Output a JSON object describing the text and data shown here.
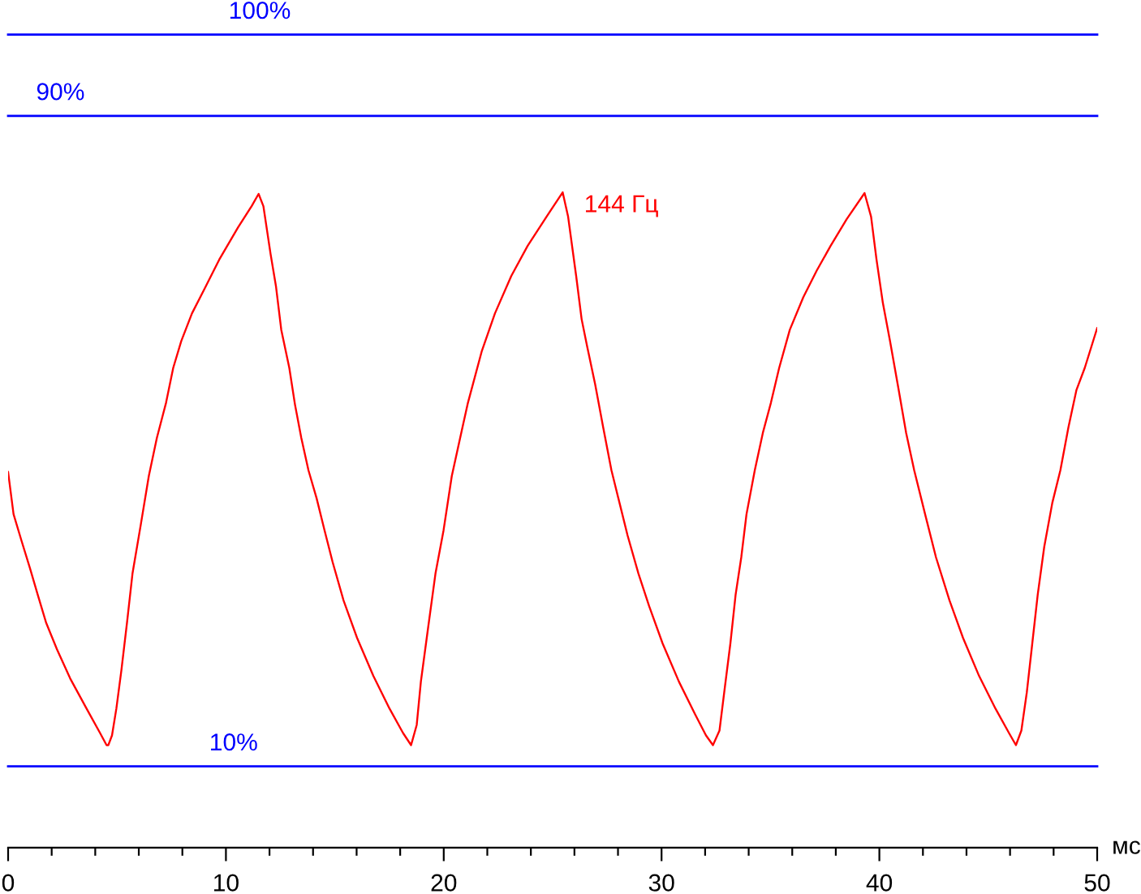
{
  "chart_data": {
    "type": "line",
    "xlabel": "мс",
    "x": [
      0,
      0.25,
      0.62,
      1.0,
      1.36,
      1.74,
      2.24,
      2.85,
      3.6,
      4.22,
      4.52,
      4.6,
      4.77,
      4.97,
      5.2,
      5.46,
      5.71,
      6.09,
      6.46,
      6.83,
      7.25,
      7.58,
      7.95,
      8.44,
      9.07,
      9.69,
      10.56,
      11.18,
      11.5,
      11.72,
      12.05,
      12.3,
      12.54,
      12.91,
      13.17,
      13.46,
      13.79,
      14.16,
      14.53,
      14.9,
      15.4,
      16.02,
      16.77,
      17.51,
      18.13,
      18.5,
      18.76,
      18.95,
      19.25,
      19.62,
      19.99,
      20.37,
      20.86,
      21.11,
      21.74,
      22.35,
      23.1,
      23.85,
      24.72,
      25.46,
      25.71,
      26.08,
      26.33,
      26.58,
      26.95,
      27.32,
      27.7,
      28.07,
      28.44,
      28.94,
      29.43,
      30.05,
      30.8,
      31.54,
      32.04,
      32.36,
      32.66,
      32.91,
      33.16,
      33.4,
      33.66,
      33.9,
      34.28,
      34.65,
      35.02,
      35.4,
      35.89,
      36.51,
      37.13,
      37.76,
      38.5,
      39.32,
      39.62,
      39.87,
      40.16,
      40.49,
      40.86,
      41.23,
      41.6,
      42.1,
      42.6,
      43.22,
      43.84,
      44.58,
      45.33,
      45.95,
      46.27,
      46.52,
      46.77,
      47.02,
      47.27,
      47.57,
      47.94,
      48.31,
      48.68,
      49.05,
      49.43,
      50
    ],
    "series": [
      {
        "name": "144 Гц",
        "color": "#ff0000",
        "values": [
          46.2,
          41.0,
          37.7,
          34.4,
          31.1,
          27.7,
          24.4,
          20.8,
          17.1,
          14.1,
          12.6,
          12.6,
          13.8,
          17.1,
          21.8,
          27.7,
          33.7,
          39.7,
          45.7,
          50.4,
          54.7,
          59.0,
          62.3,
          65.7,
          69.0,
          72.3,
          76.3,
          78.9,
          80.4,
          78.9,
          73.0,
          69.0,
          63.7,
          59.0,
          54.5,
          50.4,
          46.4,
          43.0,
          39.0,
          35.1,
          30.4,
          25.8,
          21.1,
          17.1,
          14.1,
          12.6,
          15.1,
          20.4,
          26.4,
          33.7,
          39.0,
          45.7,
          51.7,
          54.7,
          61.0,
          65.7,
          70.3,
          74.0,
          77.6,
          80.6,
          77.6,
          70.3,
          65.0,
          61.7,
          57.0,
          51.7,
          46.4,
          42.4,
          38.4,
          33.7,
          29.7,
          25.1,
          20.4,
          16.4,
          13.8,
          12.6,
          14.4,
          19.8,
          25.1,
          31.1,
          35.7,
          41.0,
          46.4,
          51.0,
          54.7,
          59.0,
          63.7,
          67.7,
          71.0,
          74.0,
          77.3,
          80.5,
          77.6,
          72.3,
          67.0,
          62.3,
          56.7,
          51.0,
          46.4,
          41.0,
          35.7,
          30.4,
          25.8,
          21.1,
          17.1,
          14.1,
          12.6,
          14.4,
          19.1,
          25.1,
          31.1,
          37.0,
          42.4,
          46.4,
          51.7,
          56.3,
          59.0,
          63.9
        ]
      }
    ],
    "xlim": [
      0,
      50
    ],
    "xticks": [
      0,
      {
        "value": 2,
        "label": null
      },
      {
        "value": 4,
        "label": null
      },
      {
        "value": 6,
        "label": null
      },
      {
        "value": 8,
        "label": null
      },
      10,
      {
        "value": 12,
        "label": null
      },
      {
        "value": 14,
        "label": null
      },
      {
        "value": 16,
        "label": null
      },
      {
        "value": 18,
        "label": null
      },
      20,
      {
        "value": 22,
        "label": null
      },
      {
        "value": 24,
        "label": null
      },
      {
        "value": 26,
        "label": null
      },
      {
        "value": 28,
        "label": null
      },
      30,
      {
        "value": 32,
        "label": null
      },
      {
        "value": 34,
        "label": null
      },
      {
        "value": 36,
        "label": null
      },
      {
        "value": 38,
        "label": null
      },
      40,
      {
        "value": 42,
        "label": null
      },
      {
        "value": 44,
        "label": null
      },
      {
        "value": 46,
        "label": null
      },
      {
        "value": 48,
        "label": null
      },
      50
    ],
    "ylim": [
      0,
      100
    ],
    "tick_labels": "x",
    "ref_lines": [
      {
        "axis": "y",
        "value": 100,
        "label": "100%",
        "color": "#0000ff"
      },
      {
        "axis": "y",
        "value": 90,
        "label": "90%",
        "color": "#0000ff"
      },
      {
        "axis": "y",
        "value": 10,
        "label": "10%",
        "color": "#0000ff"
      }
    ],
    "grid": false,
    "legend": false,
    "marker": "none",
    "line_style": "solid"
  }
}
